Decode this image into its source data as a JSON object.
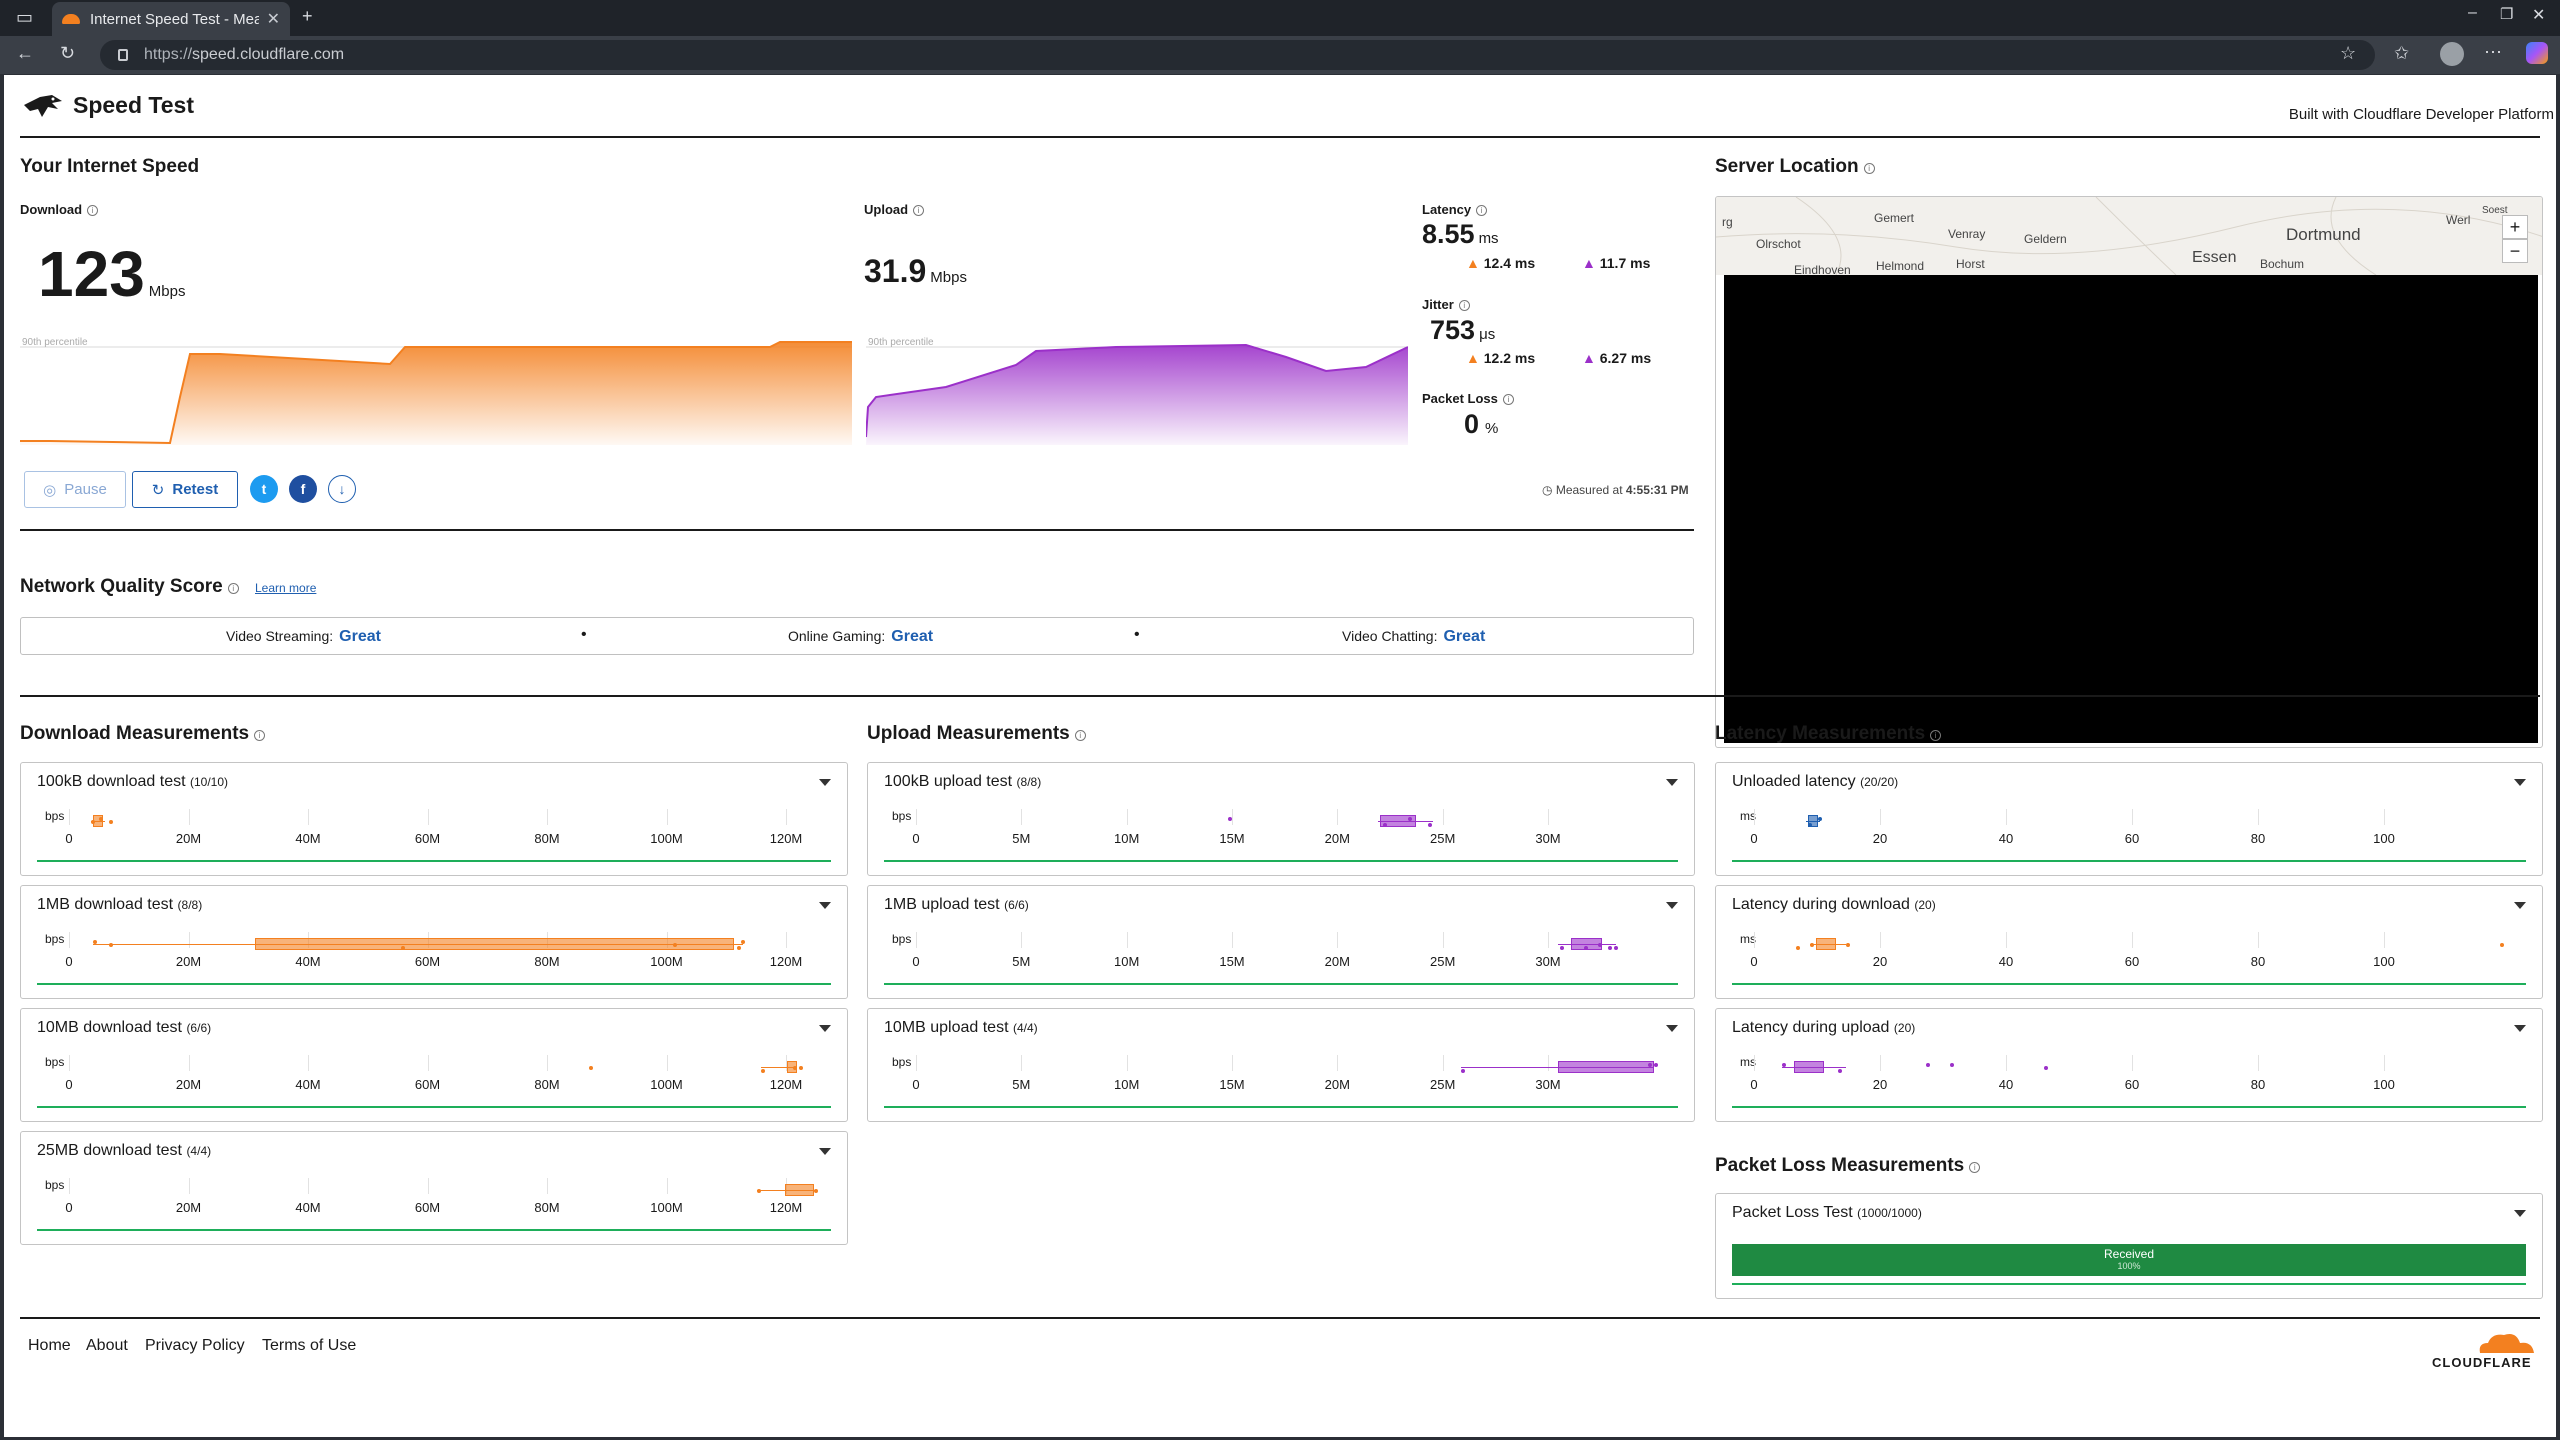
{
  "browser": {
    "tab_title": "Internet Speed Test - Meas",
    "url_scheme": "https://",
    "url_host": "speed.cloudflare.com"
  },
  "header": {
    "title": "Speed Test",
    "built_with": "Built with Cloudflare Developer Platform"
  },
  "speed": {
    "section_title": "Your Internet Speed",
    "download_label": "Download",
    "download_value": "123",
    "download_unit": "Mbps",
    "upload_label": "Upload",
    "upload_value": "31.9",
    "upload_unit": "Mbps",
    "percentile_label": "90th percentile",
    "latency_label": "Latency",
    "latency_value": "8.55",
    "latency_unit": "ms",
    "latency_down": "12.4 ms",
    "latency_up": "11.7 ms",
    "jitter_label": "Jitter",
    "jitter_value": "753",
    "jitter_unit": "μs",
    "jitter_down": "12.2 ms",
    "jitter_up": "6.27 ms",
    "loss_label": "Packet Loss",
    "loss_value": "0",
    "loss_unit": "%",
    "pause_label": "Pause",
    "retest_label": "Retest",
    "measured_prefix": "Measured at",
    "measured_time": "4:55:31 PM"
  },
  "quality": {
    "title": "Network Quality Score",
    "learn_more": "Learn more",
    "items": [
      {
        "label": "Video Streaming:",
        "value": "Great"
      },
      {
        "label": "Online Gaming:",
        "value": "Great"
      },
      {
        "label": "Video Chatting:",
        "value": "Great"
      }
    ]
  },
  "location": {
    "title": "Server Location",
    "places": [
      "rg",
      "Gemert",
      "Olrschot",
      "Venray",
      "Geldern",
      "Dortmund",
      "Werl",
      "Soest",
      "Eindhoven",
      "Helmond",
      "Horst",
      "Essen",
      "Bochum"
    ]
  },
  "download_measurements": {
    "title": "Download Measurements",
    "unit": "bps",
    "ticks": [
      "0",
      "20M",
      "40M",
      "60M",
      "80M",
      "100M",
      "120M"
    ],
    "tests": [
      {
        "name": "100kB download test",
        "count": "(10/10)"
      },
      {
        "name": "1MB download test",
        "count": "(8/8)"
      },
      {
        "name": "10MB download test",
        "count": "(6/6)"
      },
      {
        "name": "25MB download test",
        "count": "(4/4)"
      }
    ]
  },
  "upload_measurements": {
    "title": "Upload Measurements",
    "unit": "bps",
    "ticks": [
      "0",
      "5M",
      "10M",
      "15M",
      "20M",
      "25M",
      "30M"
    ],
    "tests": [
      {
        "name": "100kB upload test",
        "count": "(8/8)"
      },
      {
        "name": "1MB upload test",
        "count": "(6/6)"
      },
      {
        "name": "10MB upload test",
        "count": "(4/4)"
      }
    ]
  },
  "latency_measurements": {
    "title": "Latency Measurements",
    "unit": "ms",
    "ticks": [
      "0",
      "20",
      "40",
      "60",
      "80",
      "100"
    ],
    "tests": [
      {
        "name": "Unloaded latency",
        "count": "(20/20)"
      },
      {
        "name": "Latency during download",
        "count": "(20)"
      },
      {
        "name": "Latency during upload",
        "count": "(20)"
      }
    ]
  },
  "packet_loss": {
    "title": "Packet Loss Measurements",
    "test_name": "Packet Loss Test",
    "test_count": "(1000/1000)",
    "bar_label": "Received",
    "bar_value": "100%"
  },
  "footer": {
    "links": [
      "Home",
      "About",
      "Privacy Policy",
      "Terms of Use"
    ],
    "brand": "CLOUDFLARE"
  },
  "colors": {
    "download": "#f38020",
    "upload": "#9b30c9",
    "accent": "#1f5fb0",
    "good": "#1eae5a"
  }
}
